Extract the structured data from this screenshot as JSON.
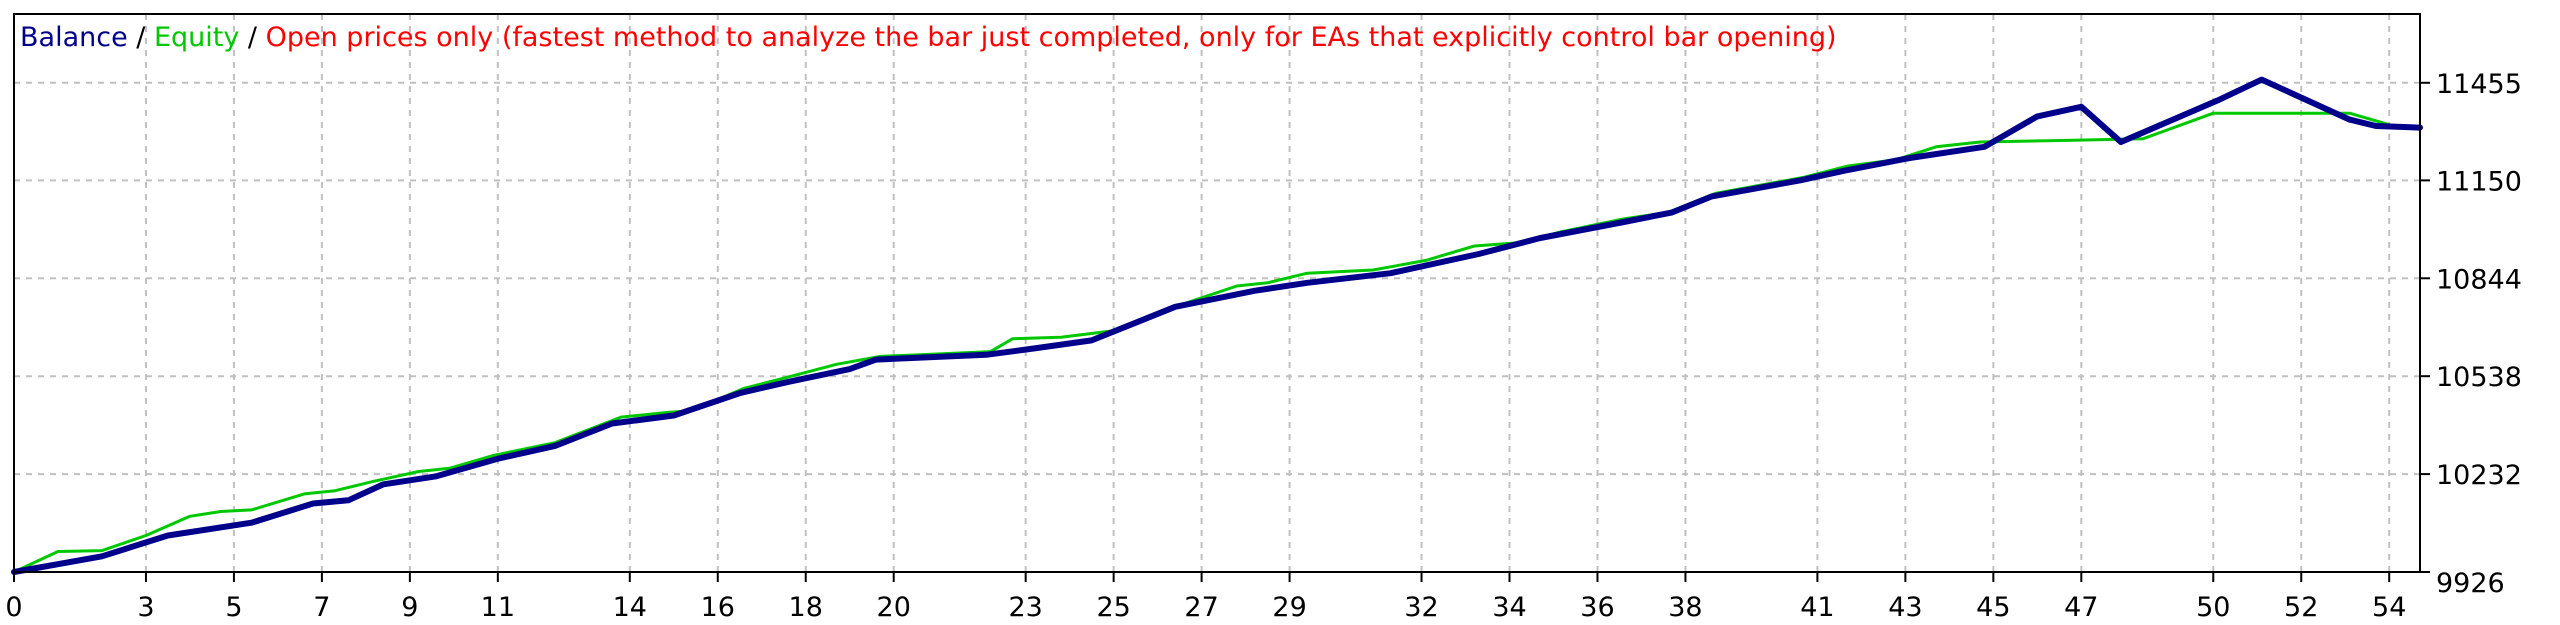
{
  "chart_data": {
    "type": "line",
    "legend": {
      "balance_label": "Balance",
      "equity_label": "Equity",
      "mode_label": "Open prices only (fastest method to analyze the bar just completed, only for EAs that explicitly control bar opening)",
      "separator": " / ",
      "placement": "top-left"
    },
    "colors": {
      "balance": "#00008b",
      "equity": "#00c800",
      "mode": "#ff0000",
      "grid": "#c0c0c0",
      "axis": "#000000"
    },
    "grid": true,
    "xlim": [
      0,
      54.7
    ],
    "ylim": [
      9926,
      11670
    ],
    "x_ticks": [
      0,
      3,
      5,
      7,
      9,
      11,
      14,
      16,
      18,
      20,
      23,
      25,
      27,
      29,
      32,
      34,
      36,
      38,
      41,
      43,
      45,
      47,
      50,
      52,
      54
    ],
    "y_ticks": [
      9926,
      10232,
      10538,
      10844,
      11150,
      11455
    ],
    "series": [
      {
        "name": "Balance",
        "points": [
          [
            0,
            9926
          ],
          [
            2,
            9975
          ],
          [
            3.5,
            10040
          ],
          [
            5.4,
            10080
          ],
          [
            6.8,
            10140
          ],
          [
            7.6,
            10150
          ],
          [
            8.4,
            10200
          ],
          [
            9.6,
            10225
          ],
          [
            11,
            10280
          ],
          [
            12.3,
            10320
          ],
          [
            13.6,
            10390
          ],
          [
            15,
            10415
          ],
          [
            16.5,
            10485
          ],
          [
            17.6,
            10520
          ],
          [
            19,
            10560
          ],
          [
            19.6,
            10590
          ],
          [
            22.1,
            10605
          ],
          [
            23.2,
            10625
          ],
          [
            24.5,
            10650
          ],
          [
            26.4,
            10755
          ],
          [
            28.2,
            10805
          ],
          [
            29.4,
            10830
          ],
          [
            31.3,
            10860
          ],
          [
            33.3,
            10920
          ],
          [
            34.7,
            10970
          ],
          [
            36.6,
            11020
          ],
          [
            37.7,
            11050
          ],
          [
            38.6,
            11100
          ],
          [
            40.6,
            11150
          ],
          [
            41.6,
            11180
          ],
          [
            43.1,
            11220
          ],
          [
            44.8,
            11255
          ],
          [
            46,
            11350
          ],
          [
            47,
            11380
          ],
          [
            47.9,
            11270
          ],
          [
            50.1,
            11400
          ],
          [
            51.1,
            11465
          ],
          [
            53.1,
            11340
          ],
          [
            53.7,
            11320
          ],
          [
            54.7,
            11315
          ]
        ]
      },
      {
        "name": "Equity",
        "points": [
          [
            0,
            9926
          ],
          [
            1,
            9990
          ],
          [
            2,
            9993
          ],
          [
            3,
            10040
          ],
          [
            4,
            10100
          ],
          [
            4.7,
            10115
          ],
          [
            5.4,
            10120
          ],
          [
            6.6,
            10170
          ],
          [
            7.3,
            10180
          ],
          [
            8.2,
            10210
          ],
          [
            9.2,
            10240
          ],
          [
            9.9,
            10250
          ],
          [
            10.9,
            10290
          ],
          [
            12.3,
            10330
          ],
          [
            13.8,
            10410
          ],
          [
            14.9,
            10425
          ],
          [
            15.4,
            10430
          ],
          [
            16.6,
            10500
          ],
          [
            17.6,
            10535
          ],
          [
            18.7,
            10575
          ],
          [
            19.7,
            10600
          ],
          [
            20.6,
            10605
          ],
          [
            22.2,
            10615
          ],
          [
            22.7,
            10655
          ],
          [
            23.8,
            10660
          ],
          [
            25,
            10680
          ],
          [
            26.5,
            10760
          ],
          [
            27.8,
            10820
          ],
          [
            28.5,
            10830
          ],
          [
            29.4,
            10860
          ],
          [
            30.9,
            10870
          ],
          [
            32.1,
            10900
          ],
          [
            33.2,
            10945
          ],
          [
            34.2,
            10955
          ],
          [
            35.2,
            10990
          ],
          [
            36.6,
            11030
          ],
          [
            37.6,
            11050
          ],
          [
            38.7,
            11110
          ],
          [
            40.7,
            11160
          ],
          [
            41.7,
            11195
          ],
          [
            42.8,
            11215
          ],
          [
            43.7,
            11255
          ],
          [
            44.7,
            11270
          ],
          [
            46.7,
            11275
          ],
          [
            48.4,
            11280
          ],
          [
            50,
            11360
          ],
          [
            52,
            11360
          ],
          [
            53.1,
            11360
          ],
          [
            54.1,
            11320
          ],
          [
            54.7,
            11320
          ]
        ]
      }
    ]
  }
}
